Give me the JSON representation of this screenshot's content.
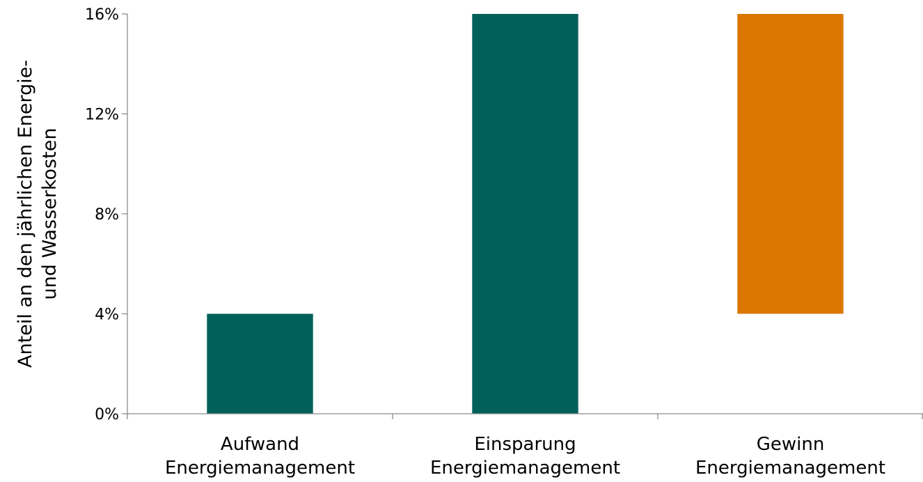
{
  "chart_data": {
    "type": "bar",
    "subtype": "waterfall",
    "categories": [
      [
        "Aufwand",
        "Energiemanagement"
      ],
      [
        "Einsparung",
        "Energiemanagement"
      ],
      [
        "Gewinn",
        "Energiemanagement"
      ]
    ],
    "bars": [
      {
        "start": 0,
        "end": 4,
        "color": "#02605A"
      },
      {
        "start": 0,
        "end": 16,
        "color": "#02605A"
      },
      {
        "start": 4,
        "end": 16,
        "color": "#DB7700"
      }
    ],
    "ylabel_lines": [
      "Anteil an den jährlichen Energie-",
      "und Wasserkosten"
    ],
    "ylim": [
      0,
      16
    ],
    "yticks": [
      0,
      4,
      8,
      12,
      16
    ],
    "ytick_labels": [
      "0%",
      "4%",
      "8%",
      "12%",
      "16%"
    ],
    "grid": false,
    "legend": "none"
  }
}
